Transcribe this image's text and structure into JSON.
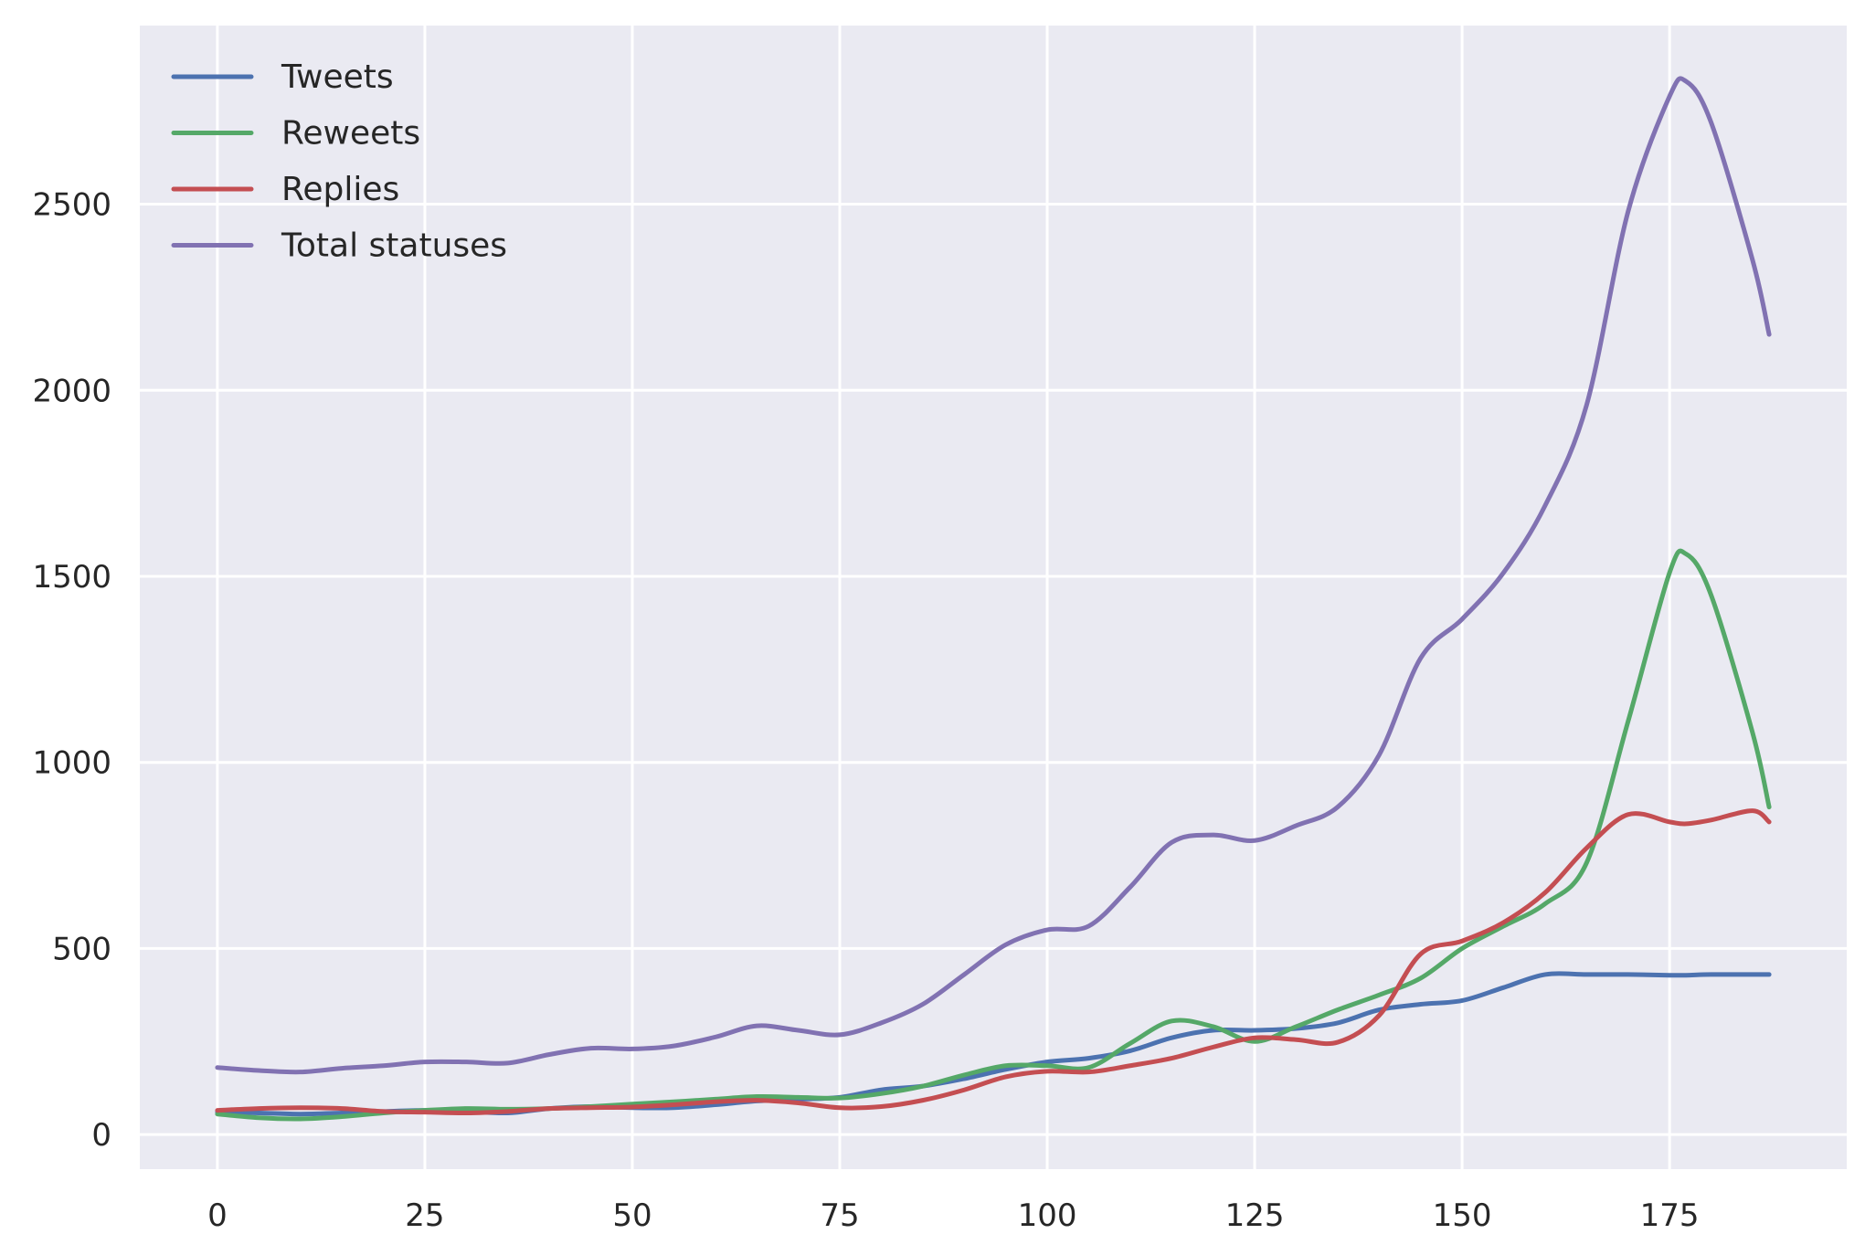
{
  "chart_data": {
    "type": "line",
    "title": "",
    "xlabel": "",
    "ylabel": "",
    "xlim": [
      -9.35,
      196.35
    ],
    "ylim": [
      -93,
      2980
    ],
    "xticks": [
      0,
      25,
      50,
      75,
      100,
      125,
      150,
      175
    ],
    "yticks": [
      0,
      500,
      1000,
      1500,
      2000,
      2500
    ],
    "grid": true,
    "legend_position": "top-left",
    "x": [
      0,
      5,
      10,
      15,
      20,
      25,
      30,
      35,
      40,
      45,
      50,
      55,
      60,
      65,
      70,
      75,
      80,
      85,
      90,
      95,
      100,
      105,
      110,
      115,
      120,
      125,
      130,
      135,
      140,
      145,
      150,
      155,
      160,
      165,
      170,
      175,
      177,
      180,
      185,
      187
    ],
    "series": [
      {
        "name": "Tweets",
        "color": "#4c72b0",
        "values": [
          60,
          58,
          55,
          58,
          62,
          65,
          62,
          58,
          70,
          75,
          72,
          72,
          80,
          90,
          95,
          100,
          120,
          130,
          150,
          175,
          195,
          205,
          225,
          260,
          280,
          280,
          285,
          300,
          335,
          350,
          360,
          395,
          430,
          430,
          430,
          428,
          428,
          430,
          430,
          430
        ]
      },
      {
        "name": "Reweets",
        "color": "#55a868",
        "values": [
          55,
          45,
          42,
          48,
          58,
          65,
          70,
          68,
          70,
          75,
          82,
          88,
          95,
          102,
          100,
          98,
          110,
          130,
          160,
          185,
          185,
          180,
          245,
          305,
          290,
          250,
          290,
          335,
          375,
          420,
          500,
          560,
          620,
          730,
          1110,
          1510,
          1560,
          1450,
          1080,
          880
        ]
      },
      {
        "name": "Replies",
        "color": "#c44e52",
        "values": [
          65,
          70,
          72,
          70,
          62,
          60,
          58,
          62,
          70,
          72,
          74,
          80,
          88,
          92,
          85,
          72,
          75,
          92,
          120,
          155,
          170,
          168,
          185,
          205,
          235,
          260,
          255,
          248,
          320,
          485,
          520,
          570,
          650,
          770,
          860,
          840,
          835,
          845,
          870,
          840
        ]
      },
      {
        "name": "Total statuses",
        "color": "#8172b2",
        "values": [
          180,
          172,
          168,
          178,
          185,
          195,
          195,
          192,
          215,
          232,
          230,
          238,
          262,
          292,
          280,
          268,
          300,
          350,
          430,
          510,
          550,
          560,
          665,
          785,
          805,
          790,
          830,
          880,
          1020,
          1280,
          1385,
          1510,
          1690,
          1960,
          2480,
          2790,
          2830,
          2720,
          2350,
          2150
        ]
      }
    ]
  }
}
